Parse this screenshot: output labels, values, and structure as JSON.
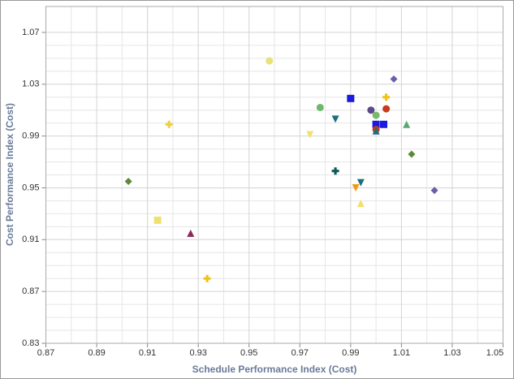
{
  "chart_data": {
    "type": "scatter",
    "x_label": "Schedule Performance Index (Cost)",
    "y_label": "Cost Performance Index (Cost)",
    "xlim": [
      0.87,
      1.05
    ],
    "ylim": [
      0.83,
      1.09
    ],
    "xticks": [
      0.87,
      0.89,
      0.91,
      0.93,
      0.95,
      0.97,
      0.99,
      1.01,
      1.03,
      1.05
    ],
    "yticks": [
      0.83,
      0.87,
      0.91,
      0.95,
      0.99,
      1.03,
      1.07
    ],
    "grid": true,
    "x": [
      0.958,
      0.978,
      0.99,
      1.007,
      1.004,
      0.998,
      1.004,
      0.984,
      1.0,
      1.003,
      1.0,
      1.012,
      1.0,
      1.0,
      0.974,
      0.9185,
      1.014,
      0.9025,
      0.984,
      0.994,
      0.992,
      0.994,
      1.023,
      0.914,
      0.927,
      0.9335
    ],
    "values": [
      1.048,
      1.012,
      1.019,
      1.034,
      1.02,
      1.01,
      1.011,
      1.003,
      0.999,
      0.999,
      1.006,
      0.999,
      0.995,
      0.994,
      0.991,
      0.999,
      0.976,
      0.955,
      0.963,
      0.954,
      0.95,
      0.938,
      0.948,
      0.925,
      0.915,
      0.88
    ],
    "colors": [
      "#e8e27a",
      "#6db86d",
      "#1a1ae0",
      "#6a5fa8",
      "#f0c419",
      "#5a4a8a",
      "#c83a1c",
      "#1a6f80",
      "#1a1ae0",
      "#1a1ae0",
      "#7ab86a",
      "#5aa870",
      "#c83a1c",
      "#1a6f80",
      "#f0e070",
      "#f0d040",
      "#5a8a3a",
      "#5a8a3a",
      "#0f5a5a",
      "#1a6f80",
      "#f09a10",
      "#f0e070",
      "#6a5fa8",
      "#f0e070",
      "#8a2a5a",
      "#f0c419"
    ],
    "markers": [
      "circle",
      "circle",
      "square",
      "diamond",
      "plus",
      "circle",
      "circle",
      "triangle-down",
      "square",
      "square",
      "circle",
      "triangle-up",
      "circle",
      "triangle-up",
      "triangle-down",
      "plus",
      "diamond",
      "diamond",
      "plus",
      "triangle-down",
      "triangle-down",
      "triangle-up",
      "diamond",
      "square",
      "triangle-up",
      "plus"
    ]
  }
}
